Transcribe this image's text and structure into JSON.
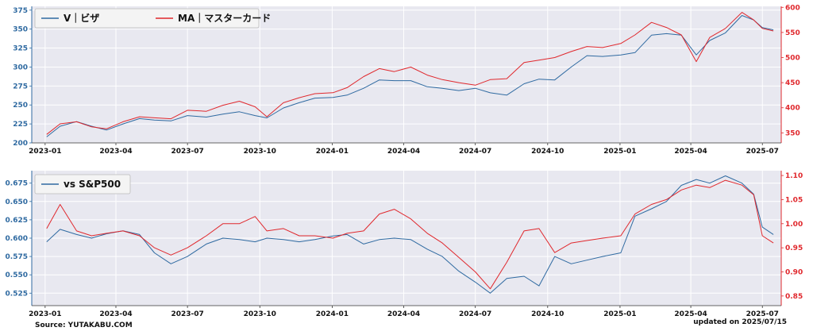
{
  "footer": {
    "source": "Source: YUTAKABU.COM",
    "updated": "updated on 2025/07/15"
  },
  "colors": {
    "series_blue": "#2f6aa1",
    "series_red": "#e0282d",
    "panel_bg": "#e8e8f0",
    "grid": "#ffffff"
  },
  "chart_data": [
    {
      "type": "line",
      "title": "",
      "x_ticks": [
        "2023-01",
        "2023-04",
        "2023-07",
        "2023-10",
        "2024-01",
        "2024-04",
        "2024-07",
        "2024-10",
        "2025-01",
        "2025-04",
        "2025-07"
      ],
      "x_range": [
        "2022-12-15",
        "2025-07-25"
      ],
      "y_left": {
        "range": [
          200,
          380
        ],
        "ticks": [
          200,
          225,
          250,
          275,
          300,
          325,
          350,
          375
        ],
        "labels": [
          "200",
          "225",
          "250",
          "275",
          "300",
          "325",
          "350",
          "375"
        ],
        "color": "#2f6aa1"
      },
      "y_right": {
        "range": [
          330,
          602
        ],
        "ticks": [
          350,
          400,
          450,
          500,
          550,
          600
        ],
        "labels": [
          "350",
          "400",
          "450",
          "500",
          "550",
          "600"
        ],
        "color": "#e0282d"
      },
      "grid": true,
      "legend": {
        "placement": "top-left",
        "columns": 2
      },
      "series": [
        {
          "name": "V｜ビザ",
          "axis": "left",
          "color": "#2f6aa1",
          "x": [
            "2023-01-03",
            "2023-01-20",
            "2023-02-10",
            "2023-03-01",
            "2023-03-20",
            "2023-04-10",
            "2023-05-01",
            "2023-05-20",
            "2023-06-10",
            "2023-07-01",
            "2023-07-25",
            "2023-08-15",
            "2023-09-05",
            "2023-09-25",
            "2023-10-10",
            "2023-10-31",
            "2023-11-20",
            "2023-12-10",
            "2024-01-02",
            "2024-01-20",
            "2024-02-10",
            "2024-03-01",
            "2024-03-20",
            "2024-04-10",
            "2024-05-01",
            "2024-05-20",
            "2024-06-10",
            "2024-07-01",
            "2024-07-20",
            "2024-08-10",
            "2024-09-01",
            "2024-09-20",
            "2024-10-10",
            "2024-10-31",
            "2024-11-20",
            "2024-12-10",
            "2025-01-02",
            "2025-01-20",
            "2025-02-10",
            "2025-03-01",
            "2025-03-20",
            "2025-04-08",
            "2025-04-25",
            "2025-05-15",
            "2025-06-05",
            "2025-06-20",
            "2025-07-01",
            "2025-07-15"
          ],
          "y": [
            208,
            222,
            228,
            222,
            217,
            225,
            232,
            230,
            229,
            236,
            234,
            238,
            241,
            236,
            233,
            246,
            253,
            259,
            260,
            263,
            272,
            283,
            282,
            282,
            274,
            272,
            269,
            272,
            266,
            263,
            278,
            284,
            283,
            300,
            315,
            314,
            316,
            319,
            342,
            344,
            342,
            316,
            335,
            345,
            368,
            362,
            352,
            349
          ]
        },
        {
          "name": "MA｜マスターカード",
          "axis": "right",
          "color": "#e0282d",
          "x": [
            "2023-01-03",
            "2023-01-20",
            "2023-02-10",
            "2023-03-01",
            "2023-03-20",
            "2023-04-10",
            "2023-05-01",
            "2023-05-20",
            "2023-06-10",
            "2023-07-01",
            "2023-07-25",
            "2023-08-15",
            "2023-09-05",
            "2023-09-25",
            "2023-10-10",
            "2023-10-31",
            "2023-11-20",
            "2023-12-10",
            "2024-01-02",
            "2024-01-20",
            "2024-02-10",
            "2024-03-01",
            "2024-03-20",
            "2024-04-10",
            "2024-05-01",
            "2024-05-20",
            "2024-06-10",
            "2024-07-01",
            "2024-07-20",
            "2024-08-10",
            "2024-09-01",
            "2024-09-20",
            "2024-10-10",
            "2024-10-31",
            "2024-11-20",
            "2024-12-10",
            "2025-01-02",
            "2025-01-20",
            "2025-02-10",
            "2025-03-01",
            "2025-03-20",
            "2025-04-08",
            "2025-04-25",
            "2025-05-15",
            "2025-06-05",
            "2025-06-20",
            "2025-07-01",
            "2025-07-15"
          ],
          "y": [
            347,
            368,
            372,
            362,
            358,
            372,
            382,
            380,
            378,
            395,
            393,
            405,
            413,
            402,
            382,
            410,
            420,
            428,
            430,
            440,
            462,
            478,
            472,
            481,
            465,
            456,
            450,
            445,
            456,
            458,
            490,
            495,
            500,
            512,
            522,
            520,
            528,
            545,
            570,
            560,
            545,
            492,
            540,
            558,
            590,
            575,
            558,
            553
          ]
        }
      ]
    },
    {
      "type": "line",
      "title": "",
      "x_ticks": [
        "2023-01",
        "2023-04",
        "2023-07",
        "2023-10",
        "2024-01",
        "2024-04",
        "2024-07",
        "2024-10",
        "2025-01",
        "2025-04",
        "2025-07"
      ],
      "x_range": [
        "2022-12-15",
        "2025-07-25"
      ],
      "y_left": {
        "range": [
          0.508,
          0.692
        ],
        "ticks": [
          0.525,
          0.55,
          0.575,
          0.6,
          0.625,
          0.65,
          0.675
        ],
        "labels": [
          "0.525",
          "0.550",
          "0.575",
          "0.600",
          "0.625",
          "0.650",
          "0.675"
        ],
        "color": "#2f6aa1"
      },
      "y_right": {
        "range": [
          0.83,
          1.11
        ],
        "ticks": [
          0.85,
          0.9,
          0.95,
          1.0,
          1.05,
          1.1
        ],
        "labels": [
          "0.85",
          "0.90",
          "0.95",
          "1.00",
          "1.05",
          "1.10"
        ],
        "color": "#e0282d"
      },
      "grid": true,
      "legend": {
        "placement": "top-left",
        "columns": 1
      },
      "series": [
        {
          "name": "vs S&P500",
          "axis": "left",
          "color": "#2f6aa1",
          "x": [
            "2023-01-03",
            "2023-01-20",
            "2023-02-10",
            "2023-03-01",
            "2023-03-20",
            "2023-04-10",
            "2023-05-01",
            "2023-05-20",
            "2023-06-10",
            "2023-07-01",
            "2023-07-25",
            "2023-08-15",
            "2023-09-05",
            "2023-09-25",
            "2023-10-10",
            "2023-10-31",
            "2023-11-20",
            "2023-12-10",
            "2024-01-02",
            "2024-01-20",
            "2024-02-10",
            "2024-03-01",
            "2024-03-20",
            "2024-04-10",
            "2024-05-01",
            "2024-05-20",
            "2024-06-10",
            "2024-07-01",
            "2024-07-20",
            "2024-08-10",
            "2024-09-01",
            "2024-09-20",
            "2024-10-10",
            "2024-10-31",
            "2024-11-20",
            "2024-12-10",
            "2025-01-02",
            "2025-01-20",
            "2025-02-10",
            "2025-03-01",
            "2025-03-20",
            "2025-04-08",
            "2025-04-25",
            "2025-05-15",
            "2025-06-05",
            "2025-06-20",
            "2025-07-01",
            "2025-07-15"
          ],
          "y": [
            0.595,
            0.612,
            0.605,
            0.6,
            0.606,
            0.61,
            0.605,
            0.58,
            0.565,
            0.575,
            0.592,
            0.6,
            0.598,
            0.595,
            0.6,
            0.598,
            0.595,
            0.598,
            0.603,
            0.605,
            0.592,
            0.598,
            0.6,
            0.598,
            0.585,
            0.575,
            0.555,
            0.54,
            0.525,
            0.545,
            0.548,
            0.535,
            0.575,
            0.565,
            0.57,
            0.575,
            0.58,
            0.63,
            0.64,
            0.65,
            0.672,
            0.68,
            0.675,
            0.685,
            0.675,
            0.66,
            0.615,
            0.605
          ]
        },
        {
          "name": "",
          "axis": "right",
          "color": "#e0282d",
          "x": [
            "2023-01-03",
            "2023-01-20",
            "2023-02-10",
            "2023-03-01",
            "2023-03-20",
            "2023-04-10",
            "2023-05-01",
            "2023-05-20",
            "2023-06-10",
            "2023-07-01",
            "2023-07-25",
            "2023-08-15",
            "2023-09-05",
            "2023-09-25",
            "2023-10-10",
            "2023-10-31",
            "2023-11-20",
            "2023-12-10",
            "2024-01-02",
            "2024-01-20",
            "2024-02-10",
            "2024-03-01",
            "2024-03-20",
            "2024-04-10",
            "2024-05-01",
            "2024-05-20",
            "2024-06-10",
            "2024-07-01",
            "2024-07-20",
            "2024-08-10",
            "2024-09-01",
            "2024-09-20",
            "2024-10-10",
            "2024-10-31",
            "2024-11-20",
            "2024-12-10",
            "2025-01-02",
            "2025-01-20",
            "2025-02-10",
            "2025-03-01",
            "2025-03-20",
            "2025-04-08",
            "2025-04-25",
            "2025-05-15",
            "2025-06-05",
            "2025-06-20",
            "2025-07-01",
            "2025-07-15"
          ],
          "y": [
            0.99,
            1.04,
            0.985,
            0.975,
            0.98,
            0.985,
            0.975,
            0.95,
            0.935,
            0.95,
            0.975,
            1.0,
            1.0,
            1.015,
            0.985,
            0.99,
            0.975,
            0.975,
            0.97,
            0.98,
            0.985,
            1.02,
            1.03,
            1.01,
            0.98,
            0.96,
            0.93,
            0.9,
            0.865,
            0.92,
            0.985,
            0.99,
            0.94,
            0.96,
            0.965,
            0.97,
            0.975,
            1.02,
            1.04,
            1.05,
            1.07,
            1.08,
            1.075,
            1.09,
            1.08,
            1.06,
            0.975,
            0.96
          ]
        }
      ]
    }
  ]
}
